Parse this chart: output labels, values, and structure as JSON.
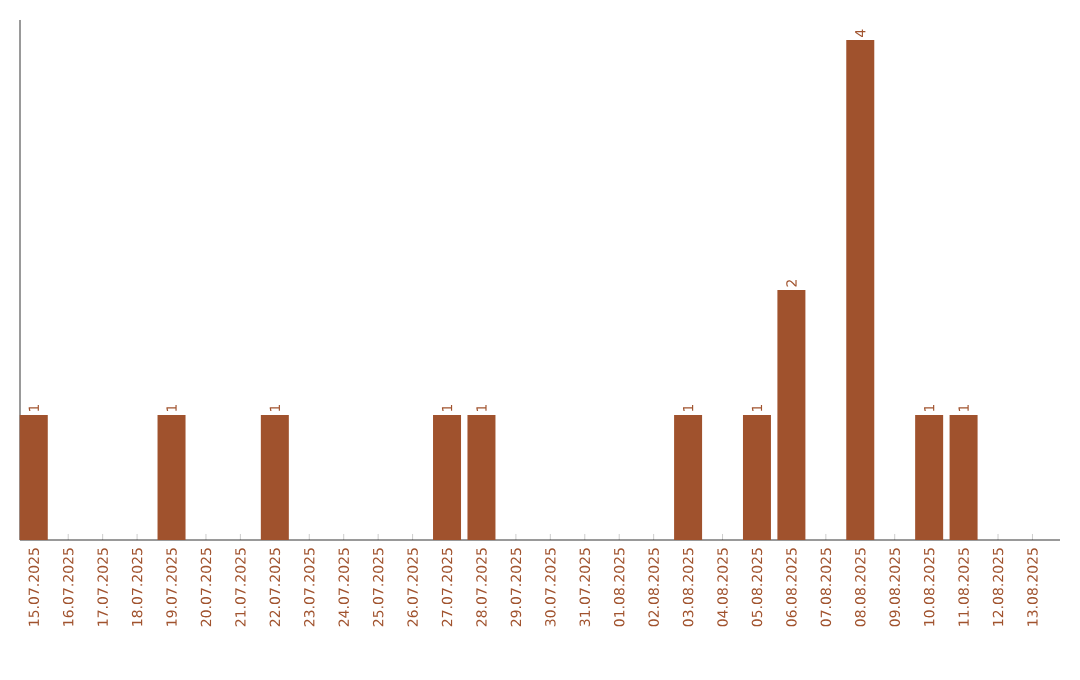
{
  "chart_data": {
    "type": "bar",
    "categories": [
      "15.07.2025",
      "16.07.2025",
      "17.07.2025",
      "18.07.2025",
      "19.07.2025",
      "20.07.2025",
      "21.07.2025",
      "22.07.2025",
      "23.07.2025",
      "24.07.2025",
      "25.07.2025",
      "26.07.2025",
      "27.07.2025",
      "28.07.2025",
      "29.07.2025",
      "30.07.2025",
      "31.07.2025",
      "01.08.2025",
      "02.08.2025",
      "03.08.2025",
      "04.08.2025",
      "05.08.2025",
      "06.08.2025",
      "07.08.2025",
      "08.08.2025",
      "09.08.2025",
      "10.08.2025",
      "11.08.2025",
      "12.08.2025",
      "13.08.2025"
    ],
    "values": [
      1,
      0,
      0,
      0,
      1,
      0,
      0,
      1,
      0,
      0,
      0,
      0,
      1,
      1,
      0,
      0,
      0,
      0,
      0,
      1,
      0,
      1,
      2,
      0,
      4,
      0,
      1,
      1,
      0,
      0
    ],
    "value_labels": [
      "1",
      null,
      null,
      null,
      "1",
      null,
      null,
      "1",
      null,
      null,
      null,
      null,
      "1",
      "1",
      null,
      null,
      null,
      null,
      null,
      "1",
      null,
      "1",
      "2",
      null,
      "4",
      null,
      "1",
      "1",
      null,
      null
    ],
    "color": "#a0522d"
  }
}
